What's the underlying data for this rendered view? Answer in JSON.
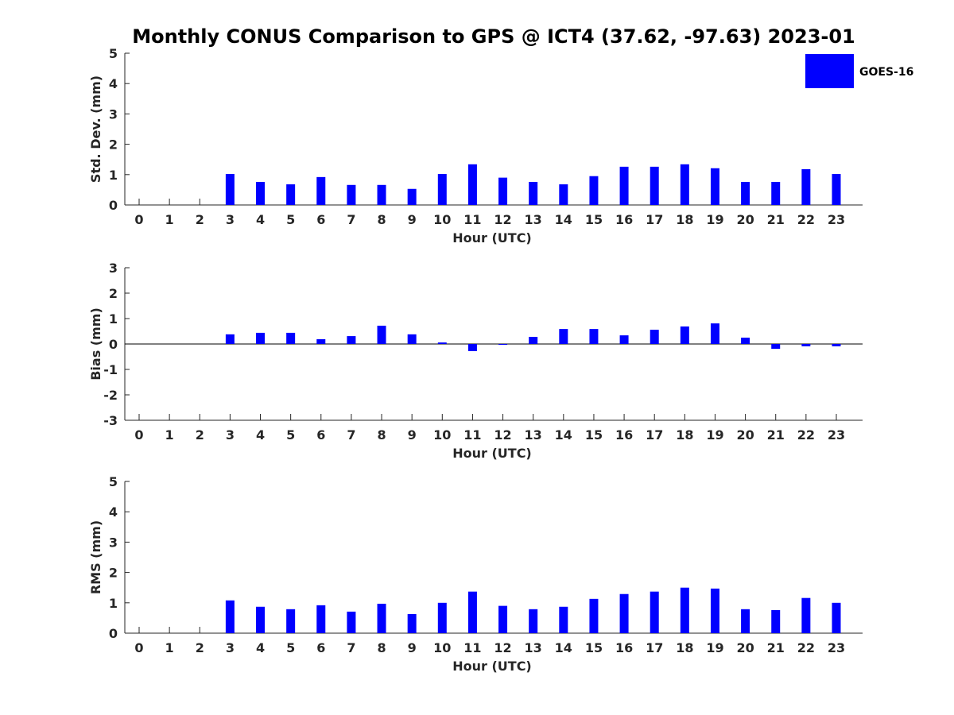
{
  "title": "Monthly CONUS Comparison to GPS @ ICT4 (37.62, -97.63) 2023-01",
  "legend": {
    "label": "GOES-16",
    "color": "#0000ff"
  },
  "chart_data": [
    {
      "type": "bar",
      "xlabel": "Hour (UTC)",
      "ylabel": "Std. Dev. (mm)",
      "ylim": [
        0,
        5
      ],
      "yticks": [
        0,
        1,
        2,
        3,
        4,
        5
      ],
      "categories": [
        "0",
        "1",
        "2",
        "3",
        "4",
        "5",
        "6",
        "7",
        "8",
        "9",
        "10",
        "11",
        "12",
        "13",
        "14",
        "15",
        "16",
        "17",
        "18",
        "19",
        "20",
        "21",
        "22",
        "23"
      ],
      "series": [
        {
          "name": "GOES-16",
          "color": "#0000ff",
          "values": [
            null,
            null,
            null,
            1.02,
            0.76,
            0.68,
            0.92,
            0.66,
            0.66,
            0.53,
            1.02,
            1.34,
            0.9,
            0.76,
            0.68,
            0.95,
            1.26,
            1.26,
            1.34,
            1.21,
            0.76,
            0.76,
            1.18,
            1.02
          ]
        }
      ],
      "grid": false,
      "legend_position": "top-right"
    },
    {
      "type": "bar",
      "xlabel": "Hour (UTC)",
      "ylabel": "Bias (mm)",
      "ylim": [
        -3,
        3
      ],
      "yticks": [
        -3,
        -2,
        -1,
        0,
        1,
        2,
        3
      ],
      "categories": [
        "0",
        "1",
        "2",
        "3",
        "4",
        "5",
        "6",
        "7",
        "8",
        "9",
        "10",
        "11",
        "12",
        "13",
        "14",
        "15",
        "16",
        "17",
        "18",
        "19",
        "20",
        "21",
        "22",
        "23"
      ],
      "series": [
        {
          "name": "GOES-16",
          "color": "#0000ff",
          "values": [
            null,
            null,
            null,
            0.38,
            0.44,
            0.44,
            0.19,
            0.31,
            0.72,
            0.38,
            0.06,
            -0.28,
            -0.03,
            0.28,
            0.59,
            0.59,
            0.34,
            0.56,
            0.69,
            0.81,
            0.25,
            -0.19,
            -0.09,
            -0.09
          ]
        }
      ],
      "grid": false,
      "zero_line": true
    },
    {
      "type": "bar",
      "xlabel": "Hour (UTC)",
      "ylabel": "RMS (mm)",
      "ylim": [
        0,
        5
      ],
      "yticks": [
        0,
        1,
        2,
        3,
        4,
        5
      ],
      "categories": [
        "0",
        "1",
        "2",
        "3",
        "4",
        "5",
        "6",
        "7",
        "8",
        "9",
        "10",
        "11",
        "12",
        "13",
        "14",
        "15",
        "16",
        "17",
        "18",
        "19",
        "20",
        "21",
        "22",
        "23"
      ],
      "series": [
        {
          "name": "GOES-16",
          "color": "#0000ff",
          "values": [
            null,
            null,
            null,
            1.08,
            0.87,
            0.79,
            0.92,
            0.71,
            0.97,
            0.63,
            1.0,
            1.37,
            0.9,
            0.79,
            0.87,
            1.13,
            1.29,
            1.37,
            1.5,
            1.47,
            0.79,
            0.76,
            1.16,
            1.0
          ]
        }
      ],
      "grid": false
    }
  ]
}
